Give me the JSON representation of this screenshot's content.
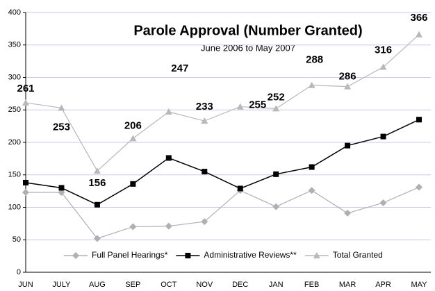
{
  "chart_data": {
    "type": "line",
    "title": "Parole Approval (Number Granted)",
    "subtitle": "June 2006 to May 2007",
    "categories": [
      "JUN",
      "JULY",
      "AUG",
      "SEP",
      "OCT",
      "NOV",
      "DEC",
      "JAN",
      "FEB",
      "MAR",
      "APR",
      "MAY"
    ],
    "series": [
      {
        "name": "Full Panel Hearings*",
        "color": "#b0b0b0",
        "marker": "diamond",
        "values": [
          123,
          123,
          52,
          70,
          71,
          78,
          126,
          101,
          126,
          91,
          107,
          131
        ]
      },
      {
        "name": "Administrative Reviews**",
        "color": "#000000",
        "marker": "square",
        "values": [
          138,
          130,
          104,
          136,
          176,
          155,
          129,
          151,
          162,
          195,
          209,
          235
        ]
      },
      {
        "name": "Total Granted",
        "color": "#b8b8b8",
        "marker": "triangle",
        "data_labels": true,
        "values": [
          261,
          253,
          156,
          206,
          247,
          233,
          255,
          252,
          288,
          286,
          316,
          366
        ]
      }
    ],
    "ylim": [
      0,
      400
    ],
    "yticks": [
      0,
      50,
      100,
      150,
      200,
      250,
      300,
      350,
      400
    ],
    "grid": true,
    "legend": "bottom"
  }
}
